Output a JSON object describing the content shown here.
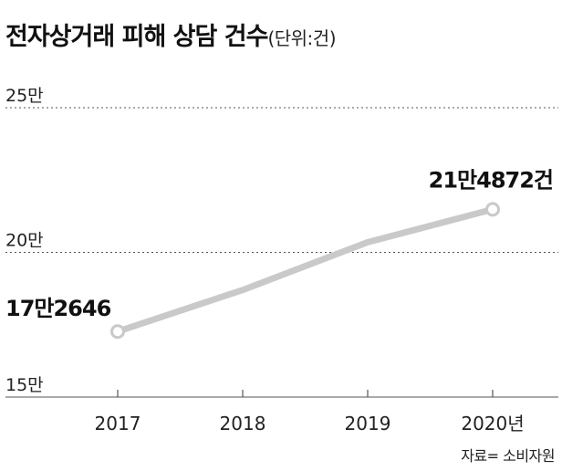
{
  "title": "전자상거래 피해 상담 건수",
  "unit": "(단위:건)",
  "source": "자료= 소비자원",
  "chart_data": {
    "type": "line",
    "categories": [
      "2017",
      "2018",
      "2019",
      "2020년"
    ],
    "series": [
      {
        "values": [
          172646,
          187000,
          203500,
          214872
        ]
      }
    ],
    "y_ticks": [
      {
        "value": 250000,
        "label": "25만"
      },
      {
        "value": 200000,
        "label": "20만"
      },
      {
        "value": 150000,
        "label": "15만"
      }
    ],
    "ylim": [
      150000,
      250000
    ],
    "point_labels": [
      {
        "index": 0,
        "text": "17만2646"
      },
      {
        "index": 3,
        "text": "21만4872건"
      }
    ],
    "grid": "dotted horizontal",
    "line_color": "#c9c9c9",
    "marker_fill": "#ffffff",
    "marker_stroke": "#c9c9c9"
  }
}
